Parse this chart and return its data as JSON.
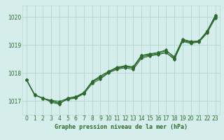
{
  "background_color": "#d5eeeb",
  "grid_color": "#b8d8d4",
  "line_color": "#2d6a2d",
  "text_color": "#2d6a2d",
  "xlabel": "Graphe pression niveau de la mer (hPa)",
  "ylim": [
    1016.5,
    1020.4
  ],
  "xlim": [
    -0.5,
    23.5
  ],
  "yticks": [
    1017,
    1018,
    1019,
    1020
  ],
  "xticks": [
    0,
    1,
    2,
    3,
    4,
    5,
    6,
    7,
    8,
    9,
    10,
    11,
    12,
    13,
    14,
    15,
    16,
    17,
    18,
    19,
    20,
    21,
    22,
    23
  ],
  "series": [
    [
      1017.75,
      1017.2,
      1017.1,
      1016.95,
      1016.9,
      1017.1,
      1017.15,
      1017.3,
      1017.7,
      1017.85,
      1018.05,
      1018.2,
      1018.25,
      1018.2,
      1018.6,
      1018.65,
      1018.7,
      1018.75,
      1018.55,
      1019.2,
      1019.1,
      1019.15,
      1019.5,
      1020.05
    ],
    [
      1017.75,
      1017.2,
      1017.1,
      1017.0,
      1016.9,
      1017.1,
      1017.15,
      1017.3,
      1017.75,
      1017.9,
      1018.05,
      1018.2,
      1018.25,
      1018.2,
      1018.6,
      1018.65,
      1018.7,
      1018.75,
      1018.55,
      1019.15,
      1019.1,
      1019.15,
      1019.45,
      1020.05
    ],
    [
      1017.75,
      1017.2,
      1017.1,
      1017.05,
      1017.05,
      1017.1,
      1017.2,
      1017.4,
      1017.75,
      1017.95,
      1018.05,
      1018.2,
      1018.25,
      1018.2,
      1018.65,
      1018.65,
      1018.75,
      1018.8,
      1018.55,
      1019.2,
      1019.1,
      1019.15,
      1019.5,
      1020.05
    ],
    [
      1017.75,
      1017.2,
      1017.1,
      1017.0,
      1017.0,
      1017.1,
      1017.15,
      1017.35,
      1017.7,
      1017.9,
      1018.1,
      1018.2,
      1018.25,
      1018.25,
      1018.65,
      1018.65,
      1018.75,
      1018.85,
      1018.55,
      1019.15,
      1019.1,
      1019.15,
      1019.5,
      1020.05
    ]
  ],
  "series_diverge": [
    [
      1017.75,
      1017.2,
      1017.1,
      1016.95,
      1016.9,
      1017.1,
      1017.15,
      1017.3,
      1017.7,
      1017.85,
      1018.05,
      1018.2,
      1018.25,
      1018.2,
      1018.6,
      1018.65,
      1018.7,
      1018.75,
      1018.55,
      1019.2,
      1019.1,
      1019.15,
      1019.5,
      1020.05
    ],
    [
      1017.75,
      1017.2,
      1017.1,
      1017.05,
      1017.05,
      1017.1,
      1017.2,
      1017.35,
      1017.7,
      1017.9,
      1018.05,
      1018.2,
      1018.3,
      1018.2,
      1018.65,
      1018.7,
      1018.75,
      1018.85,
      1018.65,
      1019.25,
      1019.12,
      1019.13,
      1019.5,
      1020.05
    ],
    [
      1017.75,
      1017.22,
      1017.1,
      1017.0,
      1016.95,
      1017.05,
      1017.1,
      1017.3,
      1017.65,
      1017.8,
      1018.0,
      1018.1,
      1018.2,
      1018.1,
      1018.55,
      1018.6,
      1018.65,
      1018.75,
      1018.5,
      1019.15,
      1019.05,
      1019.1,
      1019.45,
      1020.0
    ],
    [
      1017.75,
      1017.22,
      1017.1,
      1017.0,
      1016.95,
      1017.1,
      1017.15,
      1017.25,
      1017.6,
      1017.8,
      1018.0,
      1018.15,
      1018.2,
      1018.15,
      1018.55,
      1018.65,
      1018.7,
      1018.75,
      1018.45,
      1019.15,
      1019.1,
      1019.1,
      1019.45,
      1019.95
    ]
  ]
}
